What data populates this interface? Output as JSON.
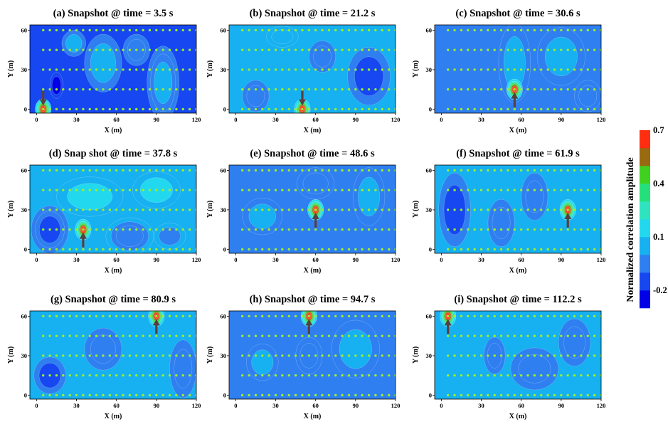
{
  "colors": {
    "background": "#1a5ef0",
    "contour_palette": [
      "#0000e6",
      "#1747f0",
      "#2f7ff0",
      "#17b0f0",
      "#22d8ee",
      "#2fe3c0",
      "#25e07a",
      "#40d020",
      "#9a6a10",
      "#ff2e10"
    ],
    "receiver": "#9cf02a",
    "arrow": "#5a3f3f"
  },
  "chart_data": [
    {
      "type": "heatmap",
      "title": "(a) Snapshot @ time = 3.5 s",
      "xlabel": "X (m)",
      "ylabel": "Y (m)",
      "xlim": [
        -5,
        120
      ],
      "ylim": [
        -3,
        64
      ],
      "xticks": [
        0,
        30,
        60,
        90,
        120
      ],
      "yticks": [
        0,
        30,
        60
      ],
      "source": [
        5,
        0
      ],
      "arrow_direction": "down",
      "background_level": -0.12,
      "features": [
        {
          "x": 15,
          "y": 18,
          "value": -0.25,
          "rx": 5,
          "ry": 10
        },
        {
          "x": 50,
          "y": 35,
          "value": 0.0,
          "rx": 14,
          "ry": 22
        },
        {
          "x": 95,
          "y": 20,
          "value": 0.05,
          "rx": 12,
          "ry": 28
        },
        {
          "x": 75,
          "y": 45,
          "value": -0.02,
          "rx": 10,
          "ry": 12
        },
        {
          "x": 28,
          "y": 50,
          "value": 0.02,
          "rx": 9,
          "ry": 10
        }
      ]
    },
    {
      "type": "heatmap",
      "title": "(b) Snapshot @ time = 21.2 s",
      "xlabel": "X (m)",
      "ylabel": "Y (m)",
      "xlim": [
        -5,
        120
      ],
      "ylim": [
        -3,
        64
      ],
      "xticks": [
        0,
        30,
        60,
        90,
        120
      ],
      "yticks": [
        0,
        30,
        60
      ],
      "source": [
        50,
        0
      ],
      "arrow_direction": "down",
      "background_level": 0.03,
      "features": [
        {
          "x": 100,
          "y": 25,
          "value": -0.12,
          "rx": 16,
          "ry": 22
        },
        {
          "x": 65,
          "y": 40,
          "value": -0.08,
          "rx": 10,
          "ry": 12
        },
        {
          "x": 15,
          "y": 10,
          "value": -0.05,
          "rx": 10,
          "ry": 12
        },
        {
          "x": 35,
          "y": 55,
          "value": 0.08,
          "rx": 12,
          "ry": 8
        }
      ]
    },
    {
      "type": "heatmap",
      "title": "(c) Snapshot @ time = 30.6 s",
      "xlabel": "X (m)",
      "ylabel": "Y (m)",
      "xlim": [
        -5,
        120
      ],
      "ylim": [
        -3,
        64
      ],
      "xticks": [
        0,
        30,
        60,
        90,
        120
      ],
      "yticks": [
        0,
        30,
        60
      ],
      "source": [
        55,
        15
      ],
      "arrow_direction": "up",
      "background_level": -0.1,
      "features": [
        {
          "x": 55,
          "y": 35,
          "value": 0.0,
          "rx": 12,
          "ry": 30
        },
        {
          "x": 90,
          "y": 40,
          "value": 0.0,
          "rx": 18,
          "ry": 22
        },
        {
          "x": 110,
          "y": 10,
          "value": -0.05,
          "rx": 10,
          "ry": 12
        }
      ]
    },
    {
      "type": "heatmap",
      "title": "(d) Snap shot @ time = 37.8 s",
      "xlabel": "X (m)",
      "ylabel": "Y (m)",
      "xlim": [
        -5,
        120
      ],
      "ylim": [
        -3,
        64
      ],
      "xticks": [
        0,
        30,
        60,
        90,
        120
      ],
      "yticks": [
        0,
        30,
        60
      ],
      "source": [
        35,
        15
      ],
      "arrow_direction": "up",
      "background_level": 0.05,
      "features": [
        {
          "x": 10,
          "y": 15,
          "value": -0.12,
          "rx": 14,
          "ry": 18
        },
        {
          "x": 70,
          "y": 10,
          "value": -0.1,
          "rx": 18,
          "ry": 14
        },
        {
          "x": 100,
          "y": 10,
          "value": -0.05,
          "rx": 12,
          "ry": 10
        },
        {
          "x": 40,
          "y": 40,
          "value": 0.12,
          "rx": 25,
          "ry": 15
        },
        {
          "x": 90,
          "y": 45,
          "value": 0.1,
          "rx": 18,
          "ry": 14
        }
      ]
    },
    {
      "type": "heatmap",
      "title": "(e) Snapshot @ time = 48.6 s",
      "xlabel": "X (m)",
      "ylabel": "Y (m)",
      "xlim": [
        -5,
        120
      ],
      "ylim": [
        -3,
        64
      ],
      "xticks": [
        0,
        30,
        60,
        90,
        120
      ],
      "yticks": [
        0,
        30,
        60
      ],
      "source": [
        60,
        30
      ],
      "arrow_direction": "up",
      "background_level": -0.1,
      "features": [
        {
          "x": 20,
          "y": 25,
          "value": 0.0,
          "rx": 15,
          "ry": 14
        },
        {
          "x": 100,
          "y": 40,
          "value": 0.0,
          "rx": 12,
          "ry": 22
        },
        {
          "x": 60,
          "y": 50,
          "value": -0.02,
          "rx": 14,
          "ry": 12
        }
      ]
    },
    {
      "type": "heatmap",
      "title": "(f) Snapshot @ time = 61.9 s",
      "xlabel": "X (m)",
      "ylabel": "Y (m)",
      "xlim": [
        -5,
        120
      ],
      "ylim": [
        -3,
        64
      ],
      "xticks": [
        0,
        30,
        60,
        90,
        120
      ],
      "yticks": [
        0,
        30,
        60
      ],
      "source": [
        95,
        30
      ],
      "arrow_direction": "up",
      "background_level": 0.0,
      "features": [
        {
          "x": 10,
          "y": 30,
          "value": -0.12,
          "rx": 12,
          "ry": 28
        },
        {
          "x": 45,
          "y": 20,
          "value": -0.1,
          "rx": 10,
          "ry": 18
        },
        {
          "x": 70,
          "y": 40,
          "value": -0.08,
          "rx": 10,
          "ry": 18
        }
      ]
    },
    {
      "type": "heatmap",
      "title": "(g) Snapshot @ time = 80.9 s",
      "xlabel": "X (m)",
      "ylabel": "Y (m)",
      "xlim": [
        -5,
        120
      ],
      "ylim": [
        -3,
        64
      ],
      "xticks": [
        0,
        30,
        60,
        90,
        120
      ],
      "yticks": [
        0,
        30,
        60
      ],
      "source": [
        90,
        60
      ],
      "arrow_direction": "up",
      "background_level": 0.0,
      "features": [
        {
          "x": 10,
          "y": 15,
          "value": -0.12,
          "rx": 12,
          "ry": 14
        },
        {
          "x": 50,
          "y": 35,
          "value": -0.1,
          "rx": 14,
          "ry": 16
        },
        {
          "x": 110,
          "y": 20,
          "value": -0.1,
          "rx": 10,
          "ry": 22
        }
      ]
    },
    {
      "type": "heatmap",
      "title": "(h) Snapshot @ time = 94.7 s",
      "xlabel": "X (m)",
      "ylabel": "Y (m)",
      "xlim": [
        -5,
        120
      ],
      "ylim": [
        -3,
        64
      ],
      "xticks": [
        0,
        30,
        60,
        90,
        120
      ],
      "yticks": [
        0,
        30,
        60
      ],
      "source": [
        55,
        60
      ],
      "arrow_direction": "up",
      "background_level": -0.1,
      "features": [
        {
          "x": 90,
          "y": 35,
          "value": 0.0,
          "rx": 18,
          "ry": 22
        },
        {
          "x": 20,
          "y": 25,
          "value": 0.0,
          "rx": 12,
          "ry": 14
        },
        {
          "x": 55,
          "y": 30,
          "value": -0.02,
          "rx": 10,
          "ry": 14
        }
      ]
    },
    {
      "type": "heatmap",
      "title": "(i) Snapshot @ time = 112.2 s",
      "xlabel": "X (m)",
      "ylabel": "Y (m)",
      "xlim": [
        -5,
        120
      ],
      "ylim": [
        -3,
        64
      ],
      "xticks": [
        0,
        30,
        60,
        90,
        120
      ],
      "yticks": [
        0,
        30,
        60
      ],
      "source": [
        5,
        60
      ],
      "arrow_direction": "up",
      "background_level": 0.0,
      "features": [
        {
          "x": 70,
          "y": 20,
          "value": -0.1,
          "rx": 18,
          "ry": 16
        },
        {
          "x": 100,
          "y": 40,
          "value": -0.08,
          "rx": 12,
          "ry": 18
        },
        {
          "x": 40,
          "y": 30,
          "value": -0.08,
          "rx": 8,
          "ry": 14
        }
      ]
    }
  ],
  "receiver_grid": {
    "x_start": 5,
    "x_end": 120,
    "x_step": 5,
    "rows_y": [
      0,
      15,
      30,
      45,
      60
    ]
  },
  "colorbar": {
    "title": "Normalized correlation amplitude",
    "levels": [
      -0.3,
      -0.2,
      -0.1,
      0.0,
      0.1,
      0.2,
      0.3,
      0.4,
      0.5,
      0.6,
      0.7
    ],
    "tick_labels": [
      {
        "value": 0.7,
        "label": "0.7"
      },
      {
        "value": 0.4,
        "label": "0.4"
      },
      {
        "value": 0.1,
        "label": "0.1"
      },
      {
        "value": -0.2,
        "label": "-0.2"
      }
    ]
  }
}
